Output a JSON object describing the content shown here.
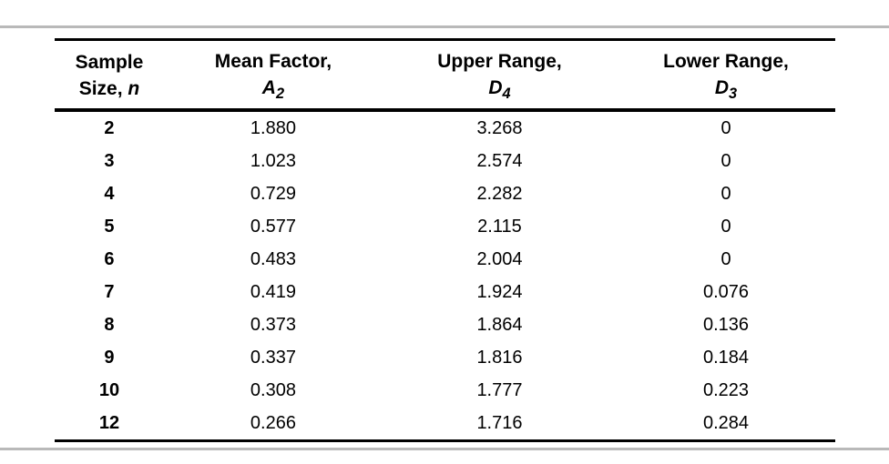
{
  "page": {
    "background_color": "#ffffff",
    "rule_color": "#b9b9b9",
    "table_line_color": "#000000",
    "text_color": "#000000"
  },
  "table": {
    "header": {
      "col1": {
        "line1": "Sample",
        "line2_prefix": "Size, ",
        "symbol": "n"
      },
      "col2": {
        "line1": "Mean Factor,",
        "symbol": "A",
        "subscript": "2"
      },
      "col3": {
        "line1": "Upper Range,",
        "symbol": "D",
        "subscript": "4"
      },
      "col4": {
        "line1": "Lower Range,",
        "symbol": "D",
        "subscript": "3"
      }
    },
    "rows": [
      {
        "n": "2",
        "a2": "1.880",
        "d4": "3.268",
        "d3": "0"
      },
      {
        "n": "3",
        "a2": "1.023",
        "d4": "2.574",
        "d3": "0"
      },
      {
        "n": "4",
        "a2": "0.729",
        "d4": "2.282",
        "d3": "0"
      },
      {
        "n": "5",
        "a2": "0.577",
        "d4": "2.115",
        "d3": "0"
      },
      {
        "n": "6",
        "a2": "0.483",
        "d4": "2.004",
        "d3": "0"
      },
      {
        "n": "7",
        "a2": "0.419",
        "d4": "1.924",
        "d3": "0.076"
      },
      {
        "n": "8",
        "a2": "0.373",
        "d4": "1.864",
        "d3": "0.136"
      },
      {
        "n": "9",
        "a2": "0.337",
        "d4": "1.816",
        "d3": "0.184"
      },
      {
        "n": "10",
        "a2": "0.308",
        "d4": "1.777",
        "d3": "0.223"
      },
      {
        "n": "12",
        "a2": "0.266",
        "d4": "1.716",
        "d3": "0.284"
      }
    ]
  },
  "chart_data": {
    "type": "table",
    "columns": [
      "Sample Size, n",
      "Mean Factor, A2",
      "Upper Range, D4",
      "Lower Range, D3"
    ],
    "rows": [
      [
        2,
        1.88,
        3.268,
        0
      ],
      [
        3,
        1.023,
        2.574,
        0
      ],
      [
        4,
        0.729,
        2.282,
        0
      ],
      [
        5,
        0.577,
        2.115,
        0
      ],
      [
        6,
        0.483,
        2.004,
        0
      ],
      [
        7,
        0.419,
        1.924,
        0.076
      ],
      [
        8,
        0.373,
        1.864,
        0.136
      ],
      [
        9,
        0.337,
        1.816,
        0.184
      ],
      [
        10,
        0.308,
        1.777,
        0.223
      ],
      [
        12,
        0.266,
        1.716,
        0.284
      ]
    ]
  }
}
